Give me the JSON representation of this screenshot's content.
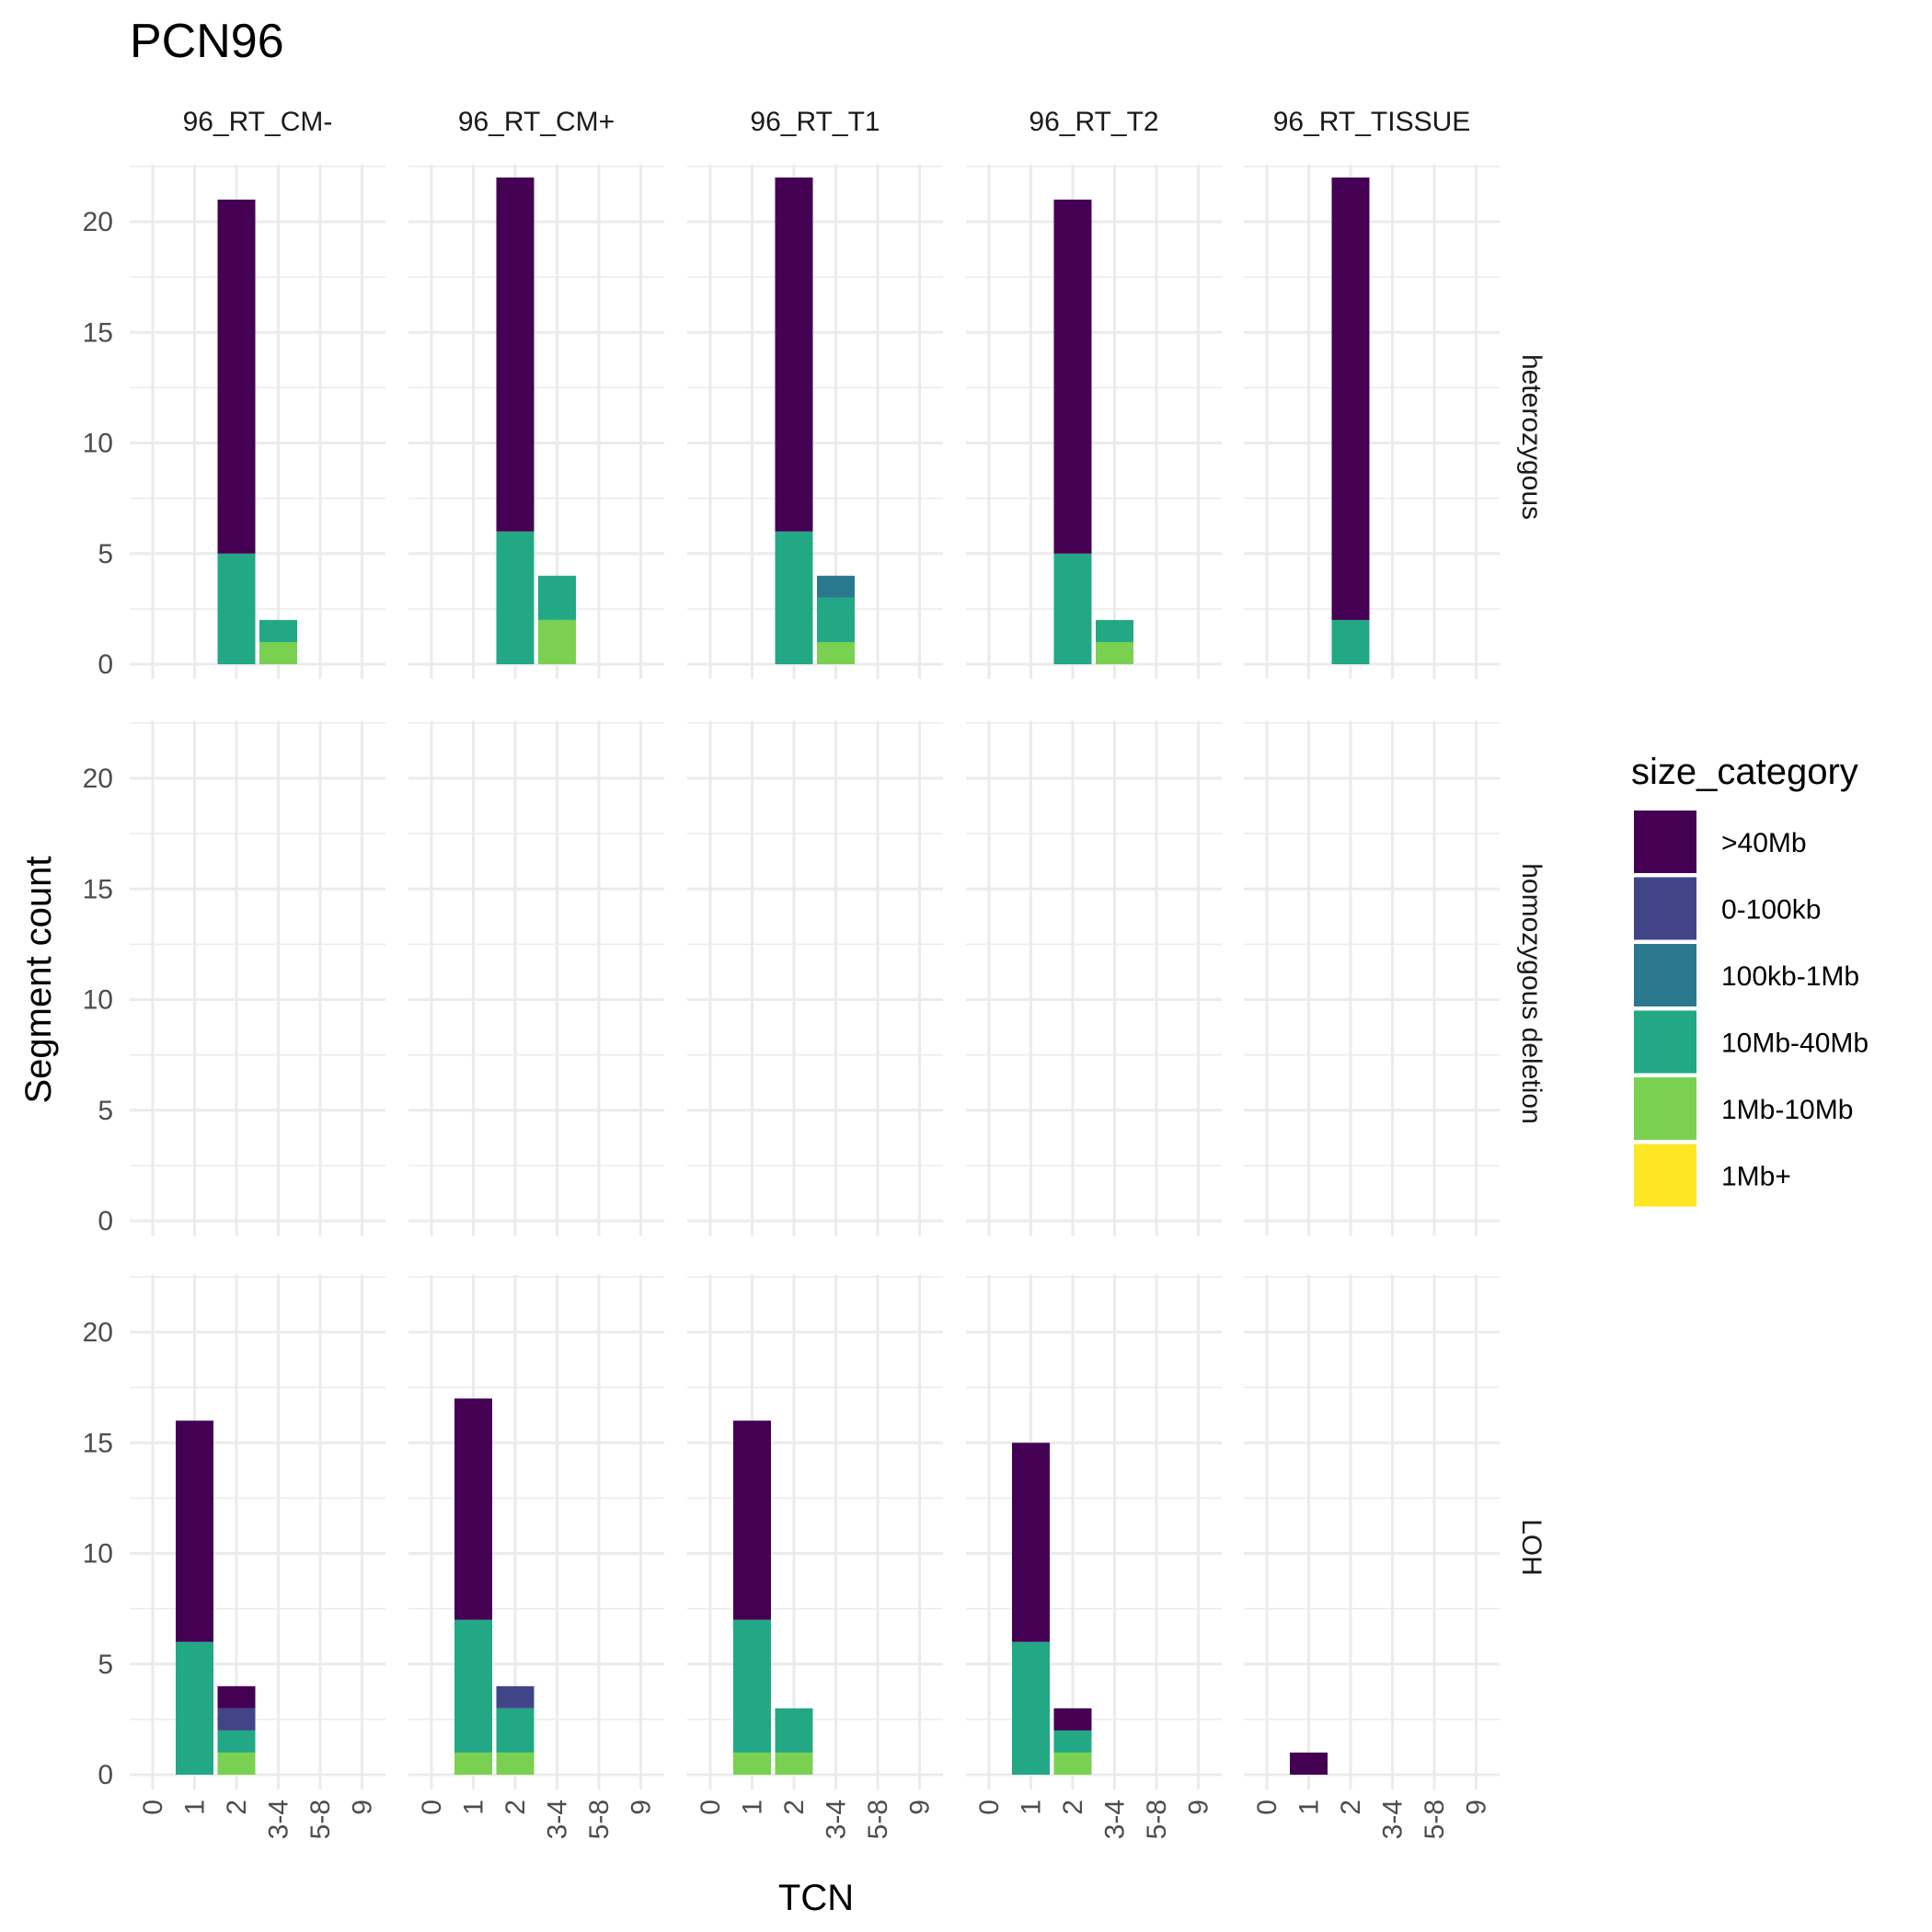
{
  "chart_data": {
    "type": "bar",
    "stacked": true,
    "title": "PCN96",
    "xlabel": "TCN",
    "ylabel": "Segment count",
    "categories": [
      "0",
      "1",
      "2",
      "3-4",
      "5-8",
      "9"
    ],
    "ylim": [
      0,
      22
    ],
    "yticks": [
      0,
      5,
      10,
      15,
      20
    ],
    "grid": true,
    "legend": {
      "title": "size_category",
      "position": "right",
      "items": [
        {
          "label": ">40Mb",
          "color": "#440154"
        },
        {
          "label": "0-100kb",
          "color": "#414487"
        },
        {
          "label": "100kb-1Mb",
          "color": "#2A788E"
        },
        {
          "label": "10Mb-40Mb",
          "color": "#22A884"
        },
        {
          "label": "1Mb-10Mb",
          "color": "#7AD151"
        },
        {
          "label": "1Mb+",
          "color": "#FDE725"
        }
      ]
    },
    "facet_columns": [
      "96_RT_CM-",
      "96_RT_CM+",
      "96_RT_T1",
      "96_RT_T2",
      "96_RT_TISSUE"
    ],
    "facet_rows": [
      "heterozygous",
      "homozygous deletion",
      "LOH"
    ],
    "panels": [
      {
        "row": "heterozygous",
        "column": "96_RT_CM-",
        "bars": [
          {
            "tcn": "2",
            "segments": [
              {
                "size": "10Mb-40Mb",
                "count": 5
              },
              {
                "size": ">40Mb",
                "count": 16
              }
            ]
          },
          {
            "tcn": "3-4",
            "segments": [
              {
                "size": "1Mb-10Mb",
                "count": 1
              },
              {
                "size": "10Mb-40Mb",
                "count": 1
              }
            ]
          }
        ]
      },
      {
        "row": "heterozygous",
        "column": "96_RT_CM+",
        "bars": [
          {
            "tcn": "2",
            "segments": [
              {
                "size": "10Mb-40Mb",
                "count": 6
              },
              {
                "size": ">40Mb",
                "count": 16
              }
            ]
          },
          {
            "tcn": "3-4",
            "segments": [
              {
                "size": "1Mb-10Mb",
                "count": 2
              },
              {
                "size": "10Mb-40Mb",
                "count": 2
              }
            ]
          }
        ]
      },
      {
        "row": "heterozygous",
        "column": "96_RT_T1",
        "bars": [
          {
            "tcn": "2",
            "segments": [
              {
                "size": "10Mb-40Mb",
                "count": 6
              },
              {
                "size": ">40Mb",
                "count": 16
              }
            ]
          },
          {
            "tcn": "3-4",
            "segments": [
              {
                "size": "1Mb-10Mb",
                "count": 1
              },
              {
                "size": "10Mb-40Mb",
                "count": 2
              },
              {
                "size": "100kb-1Mb",
                "count": 1
              }
            ]
          }
        ]
      },
      {
        "row": "heterozygous",
        "column": "96_RT_T2",
        "bars": [
          {
            "tcn": "2",
            "segments": [
              {
                "size": "10Mb-40Mb",
                "count": 5
              },
              {
                "size": ">40Mb",
                "count": 16
              }
            ]
          },
          {
            "tcn": "3-4",
            "segments": [
              {
                "size": "1Mb-10Mb",
                "count": 1
              },
              {
                "size": "10Mb-40Mb",
                "count": 1
              }
            ]
          }
        ]
      },
      {
        "row": "heterozygous",
        "column": "96_RT_TISSUE",
        "bars": [
          {
            "tcn": "2",
            "segments": [
              {
                "size": "10Mb-40Mb",
                "count": 2
              },
              {
                "size": ">40Mb",
                "count": 20
              }
            ]
          }
        ]
      },
      {
        "row": "homozygous deletion",
        "column": "96_RT_CM-",
        "bars": []
      },
      {
        "row": "homozygous deletion",
        "column": "96_RT_CM+",
        "bars": []
      },
      {
        "row": "homozygous deletion",
        "column": "96_RT_T1",
        "bars": []
      },
      {
        "row": "homozygous deletion",
        "column": "96_RT_T2",
        "bars": []
      },
      {
        "row": "homozygous deletion",
        "column": "96_RT_TISSUE",
        "bars": []
      },
      {
        "row": "LOH",
        "column": "96_RT_CM-",
        "bars": [
          {
            "tcn": "1",
            "segments": [
              {
                "size": "10Mb-40Mb",
                "count": 6
              },
              {
                "size": ">40Mb",
                "count": 10
              }
            ]
          },
          {
            "tcn": "2",
            "segments": [
              {
                "size": "1Mb-10Mb",
                "count": 1
              },
              {
                "size": "10Mb-40Mb",
                "count": 1
              },
              {
                "size": "0-100kb",
                "count": 1
              },
              {
                "size": ">40Mb",
                "count": 1
              }
            ]
          }
        ]
      },
      {
        "row": "LOH",
        "column": "96_RT_CM+",
        "bars": [
          {
            "tcn": "1",
            "segments": [
              {
                "size": "1Mb-10Mb",
                "count": 1
              },
              {
                "size": "10Mb-40Mb",
                "count": 6
              },
              {
                "size": ">40Mb",
                "count": 10
              }
            ]
          },
          {
            "tcn": "2",
            "segments": [
              {
                "size": "1Mb-10Mb",
                "count": 1
              },
              {
                "size": "10Mb-40Mb",
                "count": 2
              },
              {
                "size": "0-100kb",
                "count": 1
              }
            ]
          }
        ]
      },
      {
        "row": "LOH",
        "column": "96_RT_T1",
        "bars": [
          {
            "tcn": "1",
            "segments": [
              {
                "size": "1Mb-10Mb",
                "count": 1
              },
              {
                "size": "10Mb-40Mb",
                "count": 6
              },
              {
                "size": ">40Mb",
                "count": 9
              }
            ]
          },
          {
            "tcn": "2",
            "segments": [
              {
                "size": "1Mb-10Mb",
                "count": 1
              },
              {
                "size": "10Mb-40Mb",
                "count": 2
              }
            ]
          }
        ]
      },
      {
        "row": "LOH",
        "column": "96_RT_T2",
        "bars": [
          {
            "tcn": "1",
            "segments": [
              {
                "size": "10Mb-40Mb",
                "count": 6
              },
              {
                "size": ">40Mb",
                "count": 9
              }
            ]
          },
          {
            "tcn": "2",
            "segments": [
              {
                "size": "1Mb-10Mb",
                "count": 1
              },
              {
                "size": "10Mb-40Mb",
                "count": 1
              },
              {
                "size": ">40Mb",
                "count": 1
              }
            ]
          }
        ]
      },
      {
        "row": "LOH",
        "column": "96_RT_TISSUE",
        "bars": [
          {
            "tcn": "1",
            "segments": [
              {
                "size": ">40Mb",
                "count": 1
              }
            ]
          }
        ]
      }
    ]
  }
}
